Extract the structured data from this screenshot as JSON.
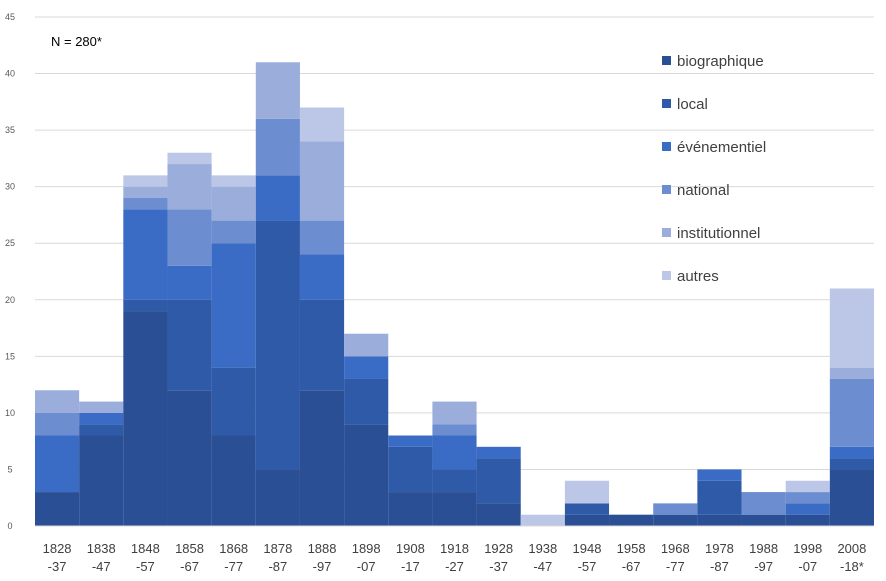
{
  "chart_data": {
    "type": "bar",
    "stacked": true,
    "annotation": "N = 280*",
    "categories": [
      [
        "1828",
        "-37"
      ],
      [
        "1838",
        "-47"
      ],
      [
        "1848",
        "-57"
      ],
      [
        "1858",
        "-67"
      ],
      [
        "1868",
        "-77"
      ],
      [
        "1878",
        "-87"
      ],
      [
        "1888",
        "-97"
      ],
      [
        "1898",
        "-07"
      ],
      [
        "1908",
        "-17"
      ],
      [
        "1918",
        "-27"
      ],
      [
        "1928",
        "-37"
      ],
      [
        "1938",
        "-47"
      ],
      [
        "1948",
        "-57"
      ],
      [
        "1958",
        "-67"
      ],
      [
        "1968",
        "-77"
      ],
      [
        "1978",
        "-87"
      ],
      [
        "1988",
        "-97"
      ],
      [
        "1998",
        "-07"
      ],
      [
        "2008",
        "-18*"
      ]
    ],
    "y_ticks": [
      "0",
      "5",
      "10",
      "15",
      "20",
      "25",
      "30",
      "35",
      "40",
      "45"
    ],
    "ylim": [
      0,
      45
    ],
    "legend_position": "top-right",
    "grid": true,
    "series": [
      {
        "name": "biographique",
        "color": "#2b4f94",
        "values": [
          3,
          8,
          19,
          12,
          8,
          5,
          12,
          9,
          3,
          3,
          2,
          0,
          1,
          1,
          1,
          1,
          1,
          1,
          5
        ]
      },
      {
        "name": "local",
        "color": "#2f5aa8",
        "values": [
          0,
          1,
          1,
          8,
          6,
          22,
          8,
          4,
          4,
          2,
          4,
          0,
          1,
          0,
          0,
          3,
          0,
          0,
          1
        ]
      },
      {
        "name": "événementiel",
        "color": "#3a6cc6",
        "values": [
          5,
          1,
          8,
          3,
          11,
          4,
          4,
          2,
          1,
          3,
          1,
          0,
          0,
          0,
          0,
          1,
          0,
          1,
          1
        ]
      },
      {
        "name": "national",
        "color": "#6c8ed0",
        "values": [
          2,
          0,
          1,
          5,
          2,
          5,
          3,
          0,
          0,
          1,
          0,
          0,
          0,
          0,
          1,
          0,
          2,
          1,
          6
        ]
      },
      {
        "name": "institutionnel",
        "color": "#9aaddb",
        "values": [
          2,
          1,
          1,
          4,
          3,
          5,
          7,
          2,
          0,
          2,
          0,
          0,
          0,
          0,
          0,
          0,
          0,
          0,
          1
        ]
      },
      {
        "name": "autres",
        "color": "#bcc7e8",
        "values": [
          0,
          0,
          1,
          1,
          1,
          0,
          3,
          0,
          0,
          0,
          0,
          1,
          2,
          0,
          0,
          0,
          0,
          1,
          7
        ]
      }
    ]
  }
}
